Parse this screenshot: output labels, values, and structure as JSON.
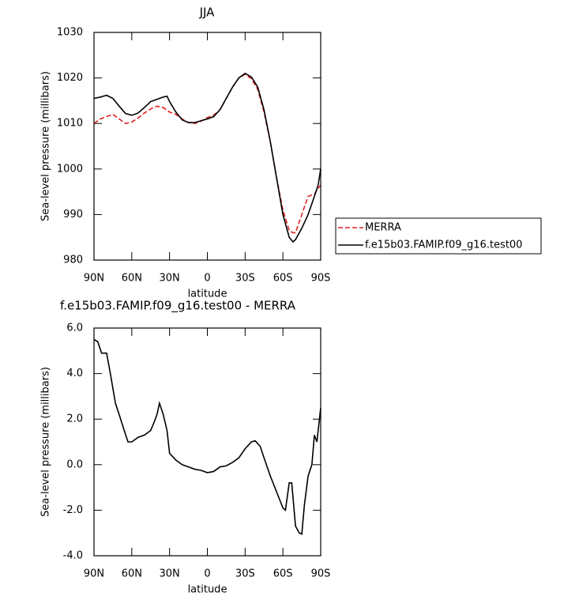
{
  "chart_data": [
    {
      "type": "line",
      "title": "JJA",
      "xlabel": "latitude",
      "ylabel": "Sea-level pressure (millibars)",
      "xlim": [
        90,
        -90
      ],
      "xticks": [
        {
          "value": 90,
          "label": "90N"
        },
        {
          "value": 60,
          "label": "60N"
        },
        {
          "value": 30,
          "label": "30N"
        },
        0,
        {
          "value": -30,
          "label": "30S"
        },
        {
          "value": -60,
          "label": "60S"
        },
        {
          "value": -90,
          "label": "90S"
        }
      ],
      "ylim": [
        980,
        1030
      ],
      "yticks": [
        980,
        990,
        1000,
        1010,
        1020,
        1030
      ],
      "legend": "right",
      "series": [
        {
          "name": "MERRA",
          "color": "#e02020",
          "line_style": "dashed",
          "x": [
            90,
            85,
            80,
            75,
            70,
            65,
            60,
            55,
            50,
            45,
            40,
            35,
            30,
            25,
            20,
            15,
            10,
            5,
            0,
            -5,
            -10,
            -15,
            -20,
            -25,
            -30,
            -35,
            -40,
            -45,
            -50,
            -55,
            -60,
            -65,
            -68,
            -70,
            -75,
            -80,
            -85,
            -90
          ],
          "values": [
            1010,
            1011,
            1011.5,
            1012,
            1011,
            1010,
            1010.3,
            1011.2,
            1012.3,
            1013.2,
            1013.8,
            1013.5,
            1012.5,
            1012,
            1011,
            1010.2,
            1010,
            1010.5,
            1011.3,
            1011.8,
            1013,
            1015.5,
            1018,
            1020,
            1020.8,
            1019.8,
            1017.5,
            1012.5,
            1006,
            998,
            991,
            986.5,
            986,
            986,
            990,
            994,
            994.5,
            996.5
          ]
        },
        {
          "name": "f.e15b03.FAMIP.f09_g16.test00",
          "color": "#000000",
          "line_style": "solid",
          "x": [
            90,
            85,
            80,
            75,
            70,
            65,
            60,
            55,
            50,
            45,
            40,
            35,
            32,
            30,
            25,
            20,
            15,
            10,
            5,
            0,
            -5,
            -10,
            -15,
            -20,
            -25,
            -30,
            -35,
            -40,
            -45,
            -50,
            -55,
            -60,
            -65,
            -68,
            -70,
            -75,
            -80,
            -85,
            -88,
            -90
          ],
          "values": [
            1015.5,
            1015.8,
            1016.2,
            1015.5,
            1013.8,
            1012.2,
            1011.8,
            1012.3,
            1013.5,
            1014.8,
            1015.3,
            1015.8,
            1016,
            1014.8,
            1012.5,
            1010.8,
            1010.2,
            1010.2,
            1010.6,
            1011,
            1011.5,
            1013,
            1015.5,
            1018,
            1020,
            1021,
            1020.2,
            1018,
            1013,
            1006,
            998,
            990,
            985,
            984,
            984.5,
            987,
            990,
            994,
            996.5,
            1000
          ]
        }
      ]
    },
    {
      "type": "line",
      "title": "f.e15b03.FAMIP.f09_g16.test00 - MERRA",
      "xlabel": "latitude",
      "ylabel": "Sea-level pressure (millibars)",
      "xlim": [
        90,
        -90
      ],
      "xticks": [
        {
          "value": 90,
          "label": "90N"
        },
        {
          "value": 60,
          "label": "60N"
        },
        {
          "value": 30,
          "label": "30N"
        },
        0,
        {
          "value": -30,
          "label": "30S"
        },
        {
          "value": -60,
          "label": "60S"
        },
        {
          "value": -90,
          "label": "90S"
        }
      ],
      "ylim": [
        -4,
        6
      ],
      "yticks": [
        {
          "value": -4,
          "label": "-4.0"
        },
        {
          "value": -2,
          "label": "-2.0"
        },
        {
          "value": 0,
          "label": "0.0"
        },
        {
          "value": 2,
          "label": "2.0"
        },
        {
          "value": 4,
          "label": "4.0"
        },
        {
          "value": 6,
          "label": "6.0"
        }
      ],
      "series": [
        {
          "color": "#000000",
          "line_style": "solid",
          "x": [
            90,
            87,
            84,
            80,
            77,
            73,
            70,
            66,
            63,
            60,
            55,
            50,
            45,
            42,
            40,
            38,
            35,
            32,
            30,
            25,
            20,
            15,
            10,
            5,
            0,
            -5,
            -10,
            -15,
            -20,
            -25,
            -30,
            -35,
            -38,
            -42,
            -45,
            -50,
            -55,
            -60,
            -62,
            -65,
            -67,
            -70,
            -73,
            -75,
            -77,
            -80,
            -83,
            -85,
            -87,
            -89,
            -90
          ],
          "values": [
            5.5,
            5.4,
            4.9,
            4.9,
            4.0,
            2.7,
            2.2,
            1.5,
            1.0,
            1.0,
            1.2,
            1.3,
            1.5,
            1.9,
            2.2,
            2.7,
            2.2,
            1.5,
            0.5,
            0.2,
            0.0,
            -0.1,
            -0.2,
            -0.25,
            -0.35,
            -0.3,
            -0.1,
            -0.05,
            0.1,
            0.3,
            0.7,
            1.0,
            1.05,
            0.8,
            0.3,
            -0.5,
            -1.2,
            -1.9,
            -2.0,
            -0.8,
            -0.8,
            -2.7,
            -3.0,
            -3.05,
            -1.8,
            -0.5,
            0,
            1.3,
            1.0,
            2.0,
            2.5
          ]
        }
      ]
    }
  ]
}
